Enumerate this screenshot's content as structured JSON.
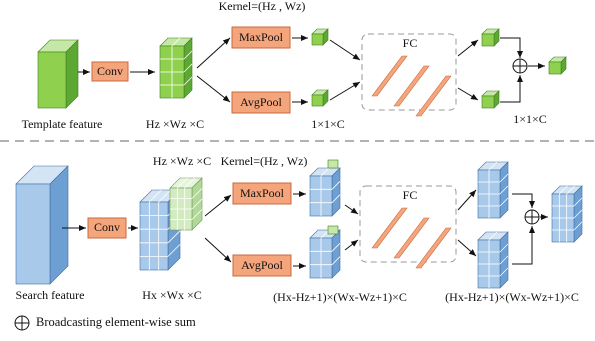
{
  "top": {
    "kernel": "Kernel=(Hz , Wz)",
    "conv": "Conv",
    "maxpool": "MaxPool",
    "avgpool": "AvgPool",
    "fc": "FC",
    "input_label": "Template feature",
    "conv_output_label": "Hz ×Wz ×C",
    "pool_output_label": "1×1×C",
    "output_label": "1×1×C"
  },
  "bottom": {
    "kernel": "Kernel=(Hz , Wz)",
    "kernel_size_label": "Hz ×Wz ×C",
    "conv": "Conv",
    "maxpool": "MaxPool",
    "avgpool": "AvgPool",
    "fc": "FC",
    "input_label": "Search feature",
    "conv_output_label": "Hx ×Wx ×C",
    "pool_output_label": "(Hx-Hz+1)×(Wx-Wz+1)×C",
    "output_label": "(Hx-Hz+1)×(Wx-Wz+1)×C"
  },
  "legend": {
    "label": "Broadcasting element-wise sum"
  }
}
